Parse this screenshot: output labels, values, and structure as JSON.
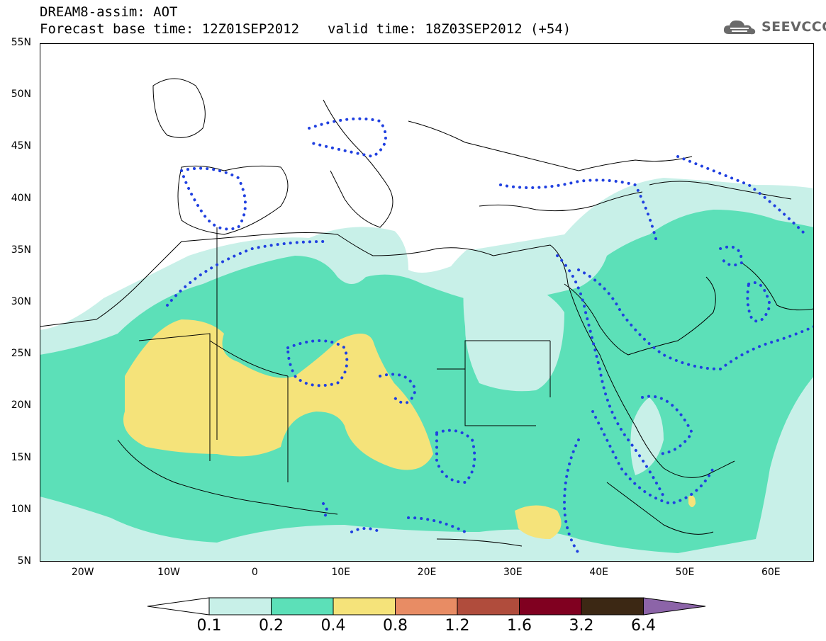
{
  "header": {
    "line1": "DREAM8-assim: AOT",
    "base_time": "Forecast base time: 12Z01SEP2012",
    "valid_time": "valid time: 18Z03SEP2012 (+54)"
  },
  "logo": {
    "text": "SEEVCCC",
    "icon": "cloud-logo-icon"
  },
  "axes": {
    "lat_labels": [
      "55N",
      "50N",
      "45N",
      "40N",
      "35N",
      "30N",
      "25N",
      "20N",
      "15N",
      "10N",
      "5N"
    ],
    "lon_labels": [
      "20W",
      "10W",
      "0",
      "10E",
      "20E",
      "30E",
      "40E",
      "50E",
      "60E"
    ],
    "lat_range": [
      5,
      55
    ],
    "lon_range": [
      -25,
      65
    ]
  },
  "colorbar": {
    "levels": [
      "0.1",
      "0.2",
      "0.4",
      "0.8",
      "1.2",
      "1.6",
      "3.2",
      "6.4"
    ],
    "colors": [
      "#ffffff",
      "#c8f0e8",
      "#5ce0b8",
      "#f5e37a",
      "#e88c64",
      "#b04c3c",
      "#800020",
      "#3c2814",
      "#8c64a8"
    ]
  },
  "map_colors": {
    "land_background": "#ffffff",
    "coast": "#000000",
    "dotted_contour": "#2040e0"
  }
}
